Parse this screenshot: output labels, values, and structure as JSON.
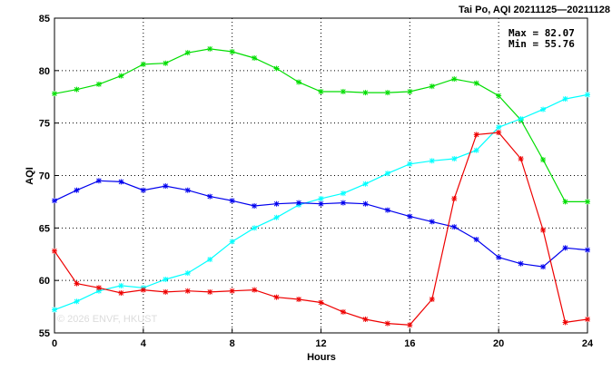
{
  "chart_data": {
    "type": "line",
    "title": "Tai Po, AQI 20211125—20211128",
    "xlabel": "Hours",
    "ylabel": "AQI",
    "xlim": [
      0,
      24
    ],
    "ylim": [
      55,
      85
    ],
    "xticks": [
      0,
      4,
      8,
      12,
      16,
      20,
      24
    ],
    "yticks": [
      55,
      60,
      65,
      70,
      75,
      80,
      85
    ],
    "grid": true,
    "stats": {
      "max": "Max = 82.07",
      "min": "Min = 55.76"
    },
    "watermark": "© 2026  ENVF, HKUST",
    "x": [
      0,
      1,
      2,
      3,
      4,
      5,
      6,
      7,
      8,
      9,
      10,
      11,
      12,
      13,
      14,
      15,
      16,
      17,
      18,
      19,
      20,
      21,
      22,
      23,
      24
    ],
    "series": [
      {
        "color": "#00dd00",
        "values": [
          77.8,
          78.2,
          78.7,
          79.5,
          80.6,
          80.7,
          81.7,
          82.07,
          81.8,
          81.2,
          80.2,
          78.9,
          78.0,
          78.0,
          77.9,
          77.9,
          78.0,
          78.5,
          79.2,
          78.8,
          77.6,
          75.3,
          71.5,
          67.5,
          67.5
        ]
      },
      {
        "color": "#00ffff",
        "values": [
          57.2,
          58.0,
          59.0,
          59.5,
          59.3,
          60.1,
          60.7,
          62.0,
          63.7,
          65.0,
          66.0,
          67.2,
          67.8,
          68.3,
          69.2,
          70.2,
          71.1,
          71.4,
          71.6,
          72.4,
          74.6,
          75.4,
          76.3,
          77.3,
          77.7
        ]
      },
      {
        "color": "#0000ee",
        "values": [
          67.6,
          68.6,
          69.5,
          69.4,
          68.6,
          69.0,
          68.6,
          68.0,
          67.6,
          67.1,
          67.3,
          67.4,
          67.3,
          67.4,
          67.3,
          66.7,
          66.1,
          65.6,
          65.1,
          63.9,
          62.2,
          61.6,
          61.3,
          63.1,
          62.9
        ]
      },
      {
        "color": "#ee0000",
        "values": [
          62.8,
          59.7,
          59.3,
          58.8,
          59.1,
          58.9,
          59.0,
          58.9,
          59.0,
          59.1,
          58.4,
          58.2,
          57.9,
          57.0,
          56.3,
          55.9,
          55.76,
          58.2,
          67.8,
          73.9,
          74.1,
          71.6,
          64.8,
          56.0,
          56.3
        ]
      }
    ]
  }
}
